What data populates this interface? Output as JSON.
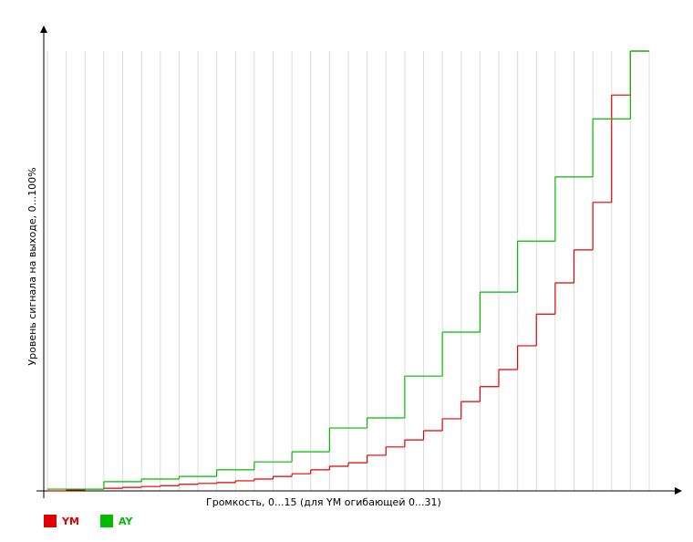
{
  "chart_data": {
    "type": "step",
    "x_label": "Громкость, 0...15  (для YM огибающей 0...31)",
    "y_label": "Уровень сигнала на выходе, 0...100%",
    "xlim": [
      0,
      32
    ],
    "ylim": [
      0,
      100
    ],
    "grid": true,
    "series": [
      {
        "name": "YM",
        "color": "#e00000",
        "x": [
          0,
          1,
          2,
          3,
          4,
          5,
          6,
          7,
          8,
          9,
          10,
          11,
          12,
          13,
          14,
          15,
          16,
          17,
          18,
          19,
          20,
          21,
          22,
          23,
          24,
          25,
          26,
          27,
          28,
          29,
          30,
          31
        ],
        "values": [
          0,
          0.2,
          0.4,
          0.6,
          0.8,
          1.0,
          1.2,
          1.5,
          1.7,
          1.9,
          2.3,
          2.7,
          3.3,
          3.9,
          4.8,
          5.6,
          6.4,
          8.1,
          10.0,
          11.6,
          13.7,
          16.4,
          20.3,
          23.7,
          27.6,
          33.0,
          40.2,
          47.3,
          54.8,
          65.6,
          90.0,
          100
        ]
      },
      {
        "name": "AY",
        "color": "#00bb00",
        "x": [
          0,
          3,
          5,
          7,
          9,
          11,
          13,
          15,
          17,
          19,
          21,
          23,
          25,
          27,
          29,
          31
        ],
        "values": [
          0.4,
          2.1,
          2.7,
          3.3,
          4.8,
          6.6,
          8.9,
          14.3,
          16.6,
          26.1,
          36.1,
          45.2,
          56.8,
          71.4,
          84.6,
          100
        ]
      }
    ]
  }
}
